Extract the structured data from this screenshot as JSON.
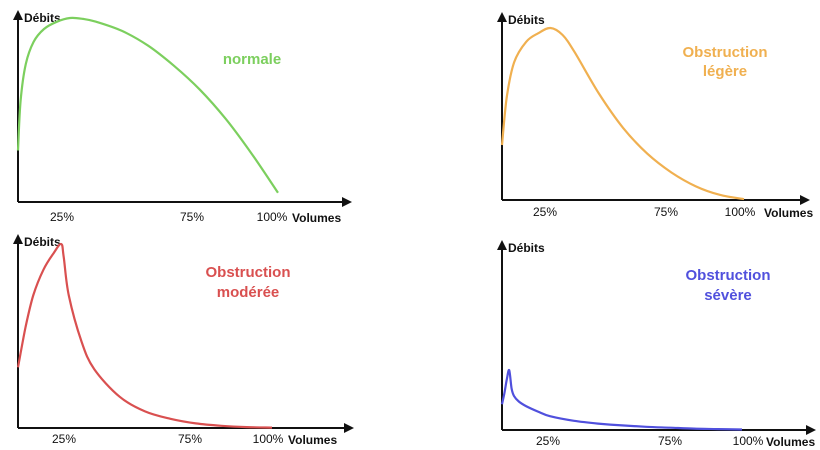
{
  "chart_data": [
    {
      "type": "line",
      "title": "normale",
      "ylabel": "Débits",
      "xlabel": "Volumes",
      "x_ticks": [
        "25%",
        "75%",
        "100%"
      ],
      "color": "#7ccf5e",
      "xlim": [
        0,
        100
      ],
      "ylim": [
        0,
        100
      ],
      "x": [
        0,
        1,
        3,
        6,
        10,
        15,
        20,
        25,
        30,
        40,
        50,
        60,
        70,
        80,
        90,
        100
      ],
      "y": [
        28,
        55,
        75,
        87,
        94,
        98,
        100,
        99.5,
        98,
        93,
        85,
        74,
        61,
        45,
        26,
        5
      ]
    },
    {
      "type": "line",
      "title": "Obstruction légère",
      "ylabel": "Débits",
      "xlabel": "Volumes",
      "x_ticks": [
        "25%",
        "75%",
        "100%"
      ],
      "color": "#f0b050",
      "xlim": [
        0,
        100
      ],
      "ylim": [
        0,
        100
      ],
      "x": [
        0,
        2,
        5,
        10,
        15,
        20,
        25,
        30,
        40,
        50,
        60,
        70,
        80,
        90,
        100
      ],
      "y": [
        32,
        60,
        80,
        92,
        97,
        100,
        96,
        86,
        62,
        42,
        27,
        16,
        8,
        3,
        0.5
      ]
    },
    {
      "type": "line",
      "title": "Obstruction modérée",
      "ylabel": "Débits",
      "xlabel": "Volumes",
      "x_ticks": [
        "25%",
        "75%",
        "100%"
      ],
      "color": "#d95050",
      "xlim": [
        0,
        100
      ],
      "ylim": [
        0,
        100
      ],
      "x": [
        0,
        3,
        6,
        10,
        14,
        17,
        18,
        20,
        25,
        30,
        40,
        50,
        60,
        70,
        80,
        90,
        100
      ],
      "y": [
        33,
        55,
        72,
        86,
        95,
        100,
        93,
        72,
        47,
        32,
        17,
        9,
        5,
        2.5,
        1.2,
        0.5,
        0.2
      ],
      "annotations": []
    },
    {
      "type": "line",
      "title": "Obstruction sévère",
      "ylabel": "Débits",
      "xlabel": "Volumes",
      "x_ticks": [
        "25%",
        "75%",
        "100%"
      ],
      "color": "#5050dd",
      "xlim": [
        0,
        100
      ],
      "ylim": [
        0,
        100
      ],
      "x": [
        0,
        1,
        2,
        3,
        4,
        5,
        7,
        10,
        15,
        20,
        30,
        40,
        50,
        60,
        70,
        80,
        90,
        100
      ],
      "y": [
        28,
        40,
        55,
        65,
        45,
        37,
        31,
        26,
        20,
        15,
        10,
        7,
        5,
        3.5,
        2.5,
        1.5,
        1,
        0.5
      ]
    }
  ]
}
